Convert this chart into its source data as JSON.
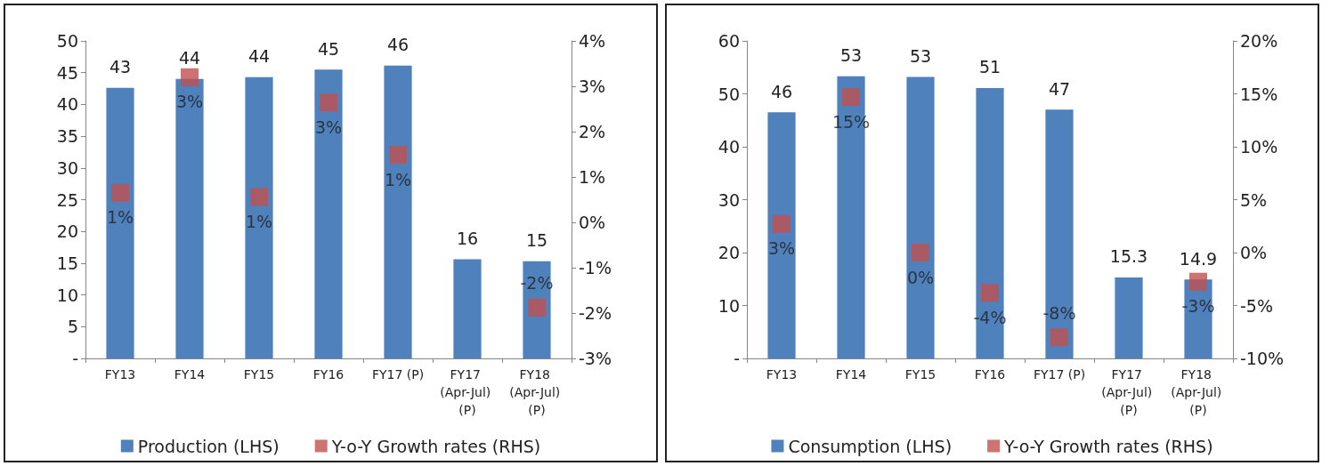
{
  "chart_data": [
    {
      "type": "bar",
      "categories": [
        "FY13",
        "FY14",
        "FY15",
        "FY16",
        "FY17 (P)",
        "FY17 (Apr-Jul) (P)",
        "FY18 (Apr-Jul) (P)"
      ],
      "series": [
        {
          "name": "Production (LHS)",
          "color": "#4f81bd",
          "values": [
            42.6,
            44.0,
            44.3,
            45.5,
            46.1,
            15.6,
            15.3
          ],
          "value_labels": [
            "43",
            "44",
            "44",
            "45",
            "46",
            "16",
            "15"
          ]
        },
        {
          "name": "Y-o-Y Growth rates (RHS)",
          "type": "scatter",
          "axis": "y2",
          "color": "#c0504d",
          "values": [
            0.65,
            3.2,
            0.56,
            2.64,
            1.49,
            null,
            -1.88
          ],
          "value_labels": [
            "1%",
            "3%",
            "1%",
            "3%",
            "1%",
            null,
            "-2%"
          ]
        }
      ],
      "ylim": [
        0,
        50
      ],
      "yticks": [
        {
          "value": 0,
          "label": "-"
        },
        5,
        10,
        15,
        20,
        25,
        30,
        35,
        40,
        45,
        50
      ],
      "y2lim": [
        -3,
        4
      ],
      "y2ticks": [
        {
          "value": -3,
          "label": "-3%"
        },
        {
          "value": -2,
          "label": "-2%"
        },
        {
          "value": -1,
          "label": "-1%"
        },
        {
          "value": 0,
          "label": "0%"
        },
        {
          "value": 1,
          "label": "1%"
        },
        {
          "value": 2,
          "label": "2%"
        },
        {
          "value": 3,
          "label": "3%"
        },
        {
          "value": 4,
          "label": "4%"
        }
      ],
      "marker": "square",
      "grid": false,
      "legend": "bottom"
    },
    {
      "type": "bar",
      "categories": [
        "FY13",
        "FY14",
        "FY15",
        "FY16",
        "FY17 (P)",
        "FY17 (Apr-Jul) (P)",
        "FY18 (Apr-Jul) (P)"
      ],
      "series": [
        {
          "name": "Consumption (LHS)",
          "color": "#4f81bd",
          "values": [
            46.5,
            53.3,
            53.2,
            51.1,
            47.0,
            15.3,
            14.9
          ],
          "value_labels": [
            "46",
            "53",
            "53",
            "51",
            "47",
            "15.3",
            "14.9"
          ]
        },
        {
          "name": "Y-o-Y Growth rates (RHS)",
          "type": "scatter",
          "axis": "y2",
          "color": "#c0504d",
          "values": [
            2.7,
            14.7,
            0.0,
            -3.8,
            -8.0,
            null,
            -2.75
          ],
          "value_labels": [
            "3%",
            "15%",
            "0%",
            "-4%",
            "-8%",
            null,
            "-3%"
          ]
        }
      ],
      "ylim": [
        0,
        60
      ],
      "yticks": [
        {
          "value": 0,
          "label": "-"
        },
        10,
        20,
        30,
        40,
        50,
        60
      ],
      "y2lim": [
        -10,
        20
      ],
      "y2ticks": [
        {
          "value": -10,
          "label": "-10%"
        },
        {
          "value": -5,
          "label": "-5%"
        },
        {
          "value": 0,
          "label": "0%"
        },
        {
          "value": 5,
          "label": "5%"
        },
        {
          "value": 10,
          "label": "10%"
        },
        {
          "value": 15,
          "label": "15%"
        },
        {
          "value": 20,
          "label": "20%"
        }
      ],
      "marker": "square",
      "grid": false,
      "legend": "bottom"
    }
  ]
}
